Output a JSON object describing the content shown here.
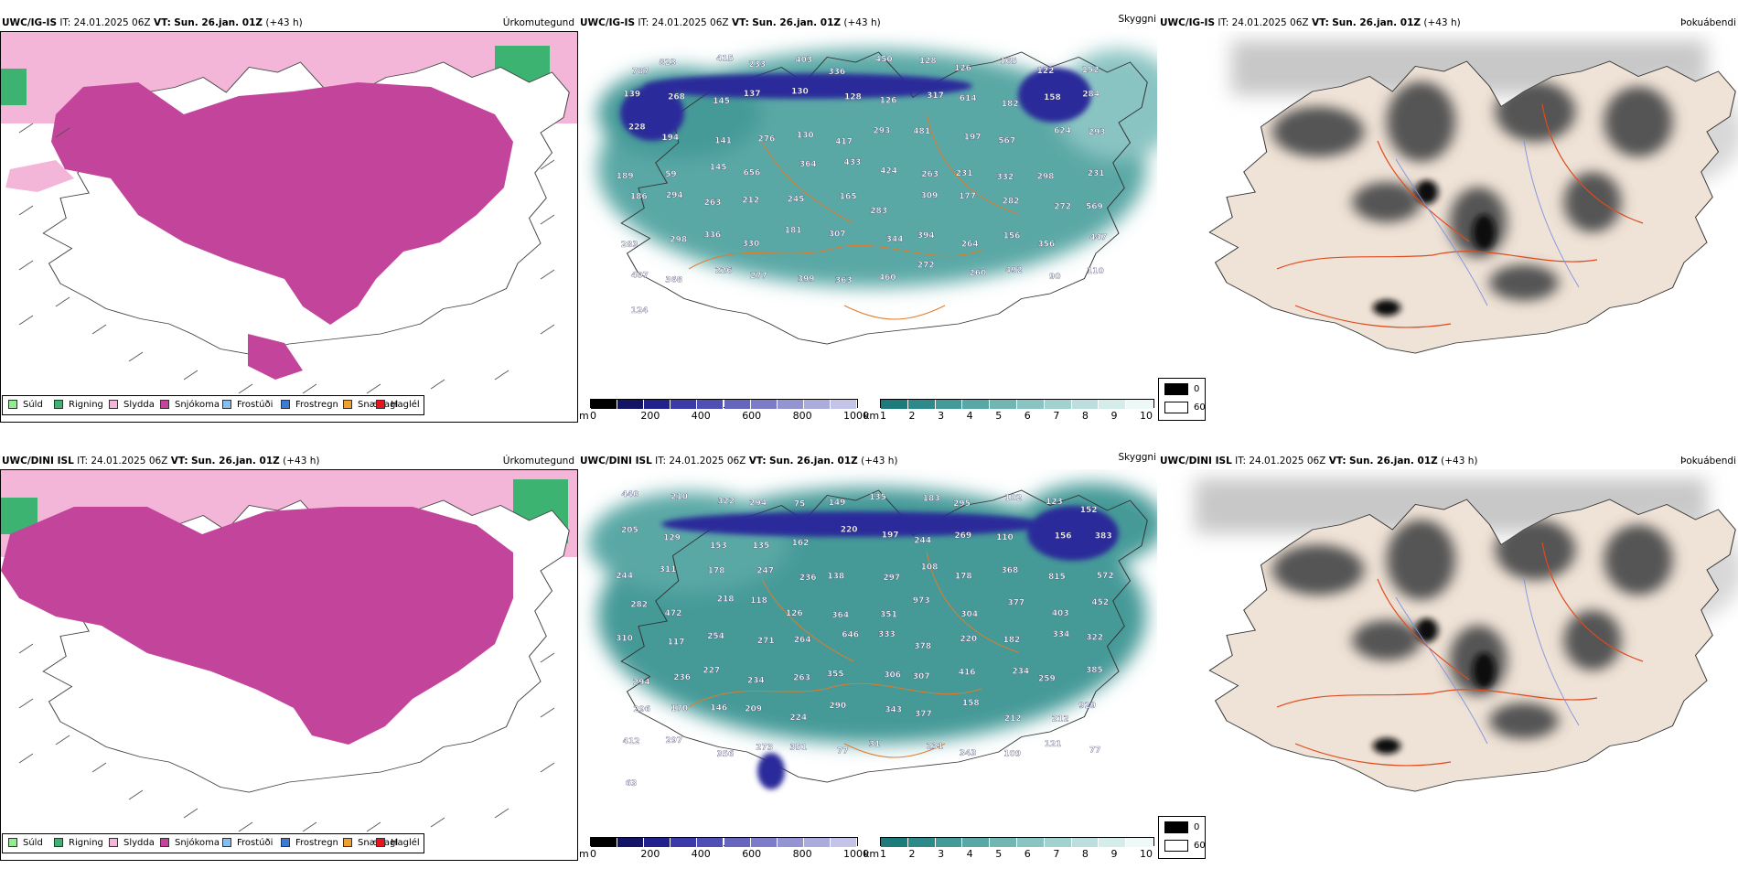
{
  "rows": [
    {
      "title_model": "UWC/IG-IS",
      "title_it": "IT: 24.01.2025 06Z",
      "title_vt_label": "VT:",
      "title_vt_value": "Sun. 26.jan. 01Z",
      "title_lead": "(+43 h)"
    },
    {
      "title_model": "UWC/DINI ISL",
      "title_it": "IT: 24.01.2025 06Z",
      "title_vt_label": "VT:",
      "title_vt_value": "Sun. 26.jan. 01Z",
      "title_lead": "(+43 h)"
    }
  ],
  "variables": {
    "precip_type": "Úrkomutegund",
    "visibility": "Skyggni",
    "fog": "Þokuábendi"
  },
  "precip_legend": [
    {
      "label": "Súld",
      "color": "#90ee90"
    },
    {
      "label": "Rigning",
      "color": "#3cb371"
    },
    {
      "label": "Slydda",
      "color": "#f4b6d8"
    },
    {
      "label": "Snjókoma",
      "color": "#c2449b"
    },
    {
      "label": "Frostúði",
      "color": "#87bdf0"
    },
    {
      "label": "Frostregn",
      "color": "#3a7bd5"
    },
    {
      "label": "Snæhagl",
      "color": "#f0a02c"
    },
    {
      "label": "Haglél",
      "color": "#e8141e"
    }
  ],
  "cloud_base_bar": {
    "unit": "m",
    "ticks": [
      "0",
      "200",
      "400",
      "600",
      "800",
      "1000"
    ],
    "colors": [
      "#000000",
      "#141466",
      "#22228c",
      "#3a3aa8",
      "#5050b4",
      "#6666be",
      "#7c7cc8",
      "#9494d2",
      "#acacdc",
      "#c4c4e8"
    ]
  },
  "visibility_bar": {
    "unit": "km",
    "ticks": [
      "1",
      "2",
      "3",
      "4",
      "5",
      "6",
      "7",
      "8",
      "9",
      "10"
    ],
    "colors": [
      "#1e7b7b",
      "#2e8a8a",
      "#449a98",
      "#5aa8a6",
      "#72b6b4",
      "#8ac4c2",
      "#a2d2d0",
      "#bcdfde",
      "#d4ecea",
      "#eef8f7"
    ]
  },
  "fog_legend": [
    {
      "label": "0",
      "color": "#000000"
    },
    {
      "label": "60",
      "color": "#ffffff"
    }
  ],
  "cloud_labels": [
    [
      "787",
      "823",
      "415",
      "233",
      "403",
      "336",
      "450",
      "128",
      "126",
      "165",
      "122",
      "152",
      "139",
      "268",
      "145",
      "137",
      "130",
      "128",
      "126",
      "317",
      "614",
      "182",
      "158",
      "284",
      "228",
      "194",
      "141",
      "276",
      "130",
      "417",
      "293",
      "481",
      "197",
      "567",
      "624",
      "293",
      "189",
      "59",
      "145",
      "656",
      "364",
      "433",
      "424",
      "263",
      "231",
      "332",
      "298",
      "231",
      "186",
      "294",
      "263",
      "212",
      "245",
      "165",
      "283",
      "309",
      "177",
      "282",
      "272",
      "569",
      "283",
      "298",
      "336",
      "330",
      "181",
      "307",
      "344",
      "394",
      "264",
      "156",
      "356",
      "447",
      "407",
      "368",
      "226",
      "277",
      "399",
      "363",
      "460",
      "272",
      "260",
      "492",
      "90",
      "110",
      "124"
    ],
    [
      "440",
      "210",
      "322",
      "294",
      "75",
      "149",
      "135",
      "183",
      "295",
      "102",
      "123",
      "152",
      "205",
      "129",
      "153",
      "135",
      "162",
      "220",
      "197",
      "244",
      "269",
      "110",
      "156",
      "383",
      "244",
      "311",
      "178",
      "247",
      "236",
      "138",
      "297",
      "108",
      "178",
      "368",
      "815",
      "572",
      "282",
      "472",
      "218",
      "118",
      "126",
      "364",
      "351",
      "973",
      "304",
      "377",
      "403",
      "452",
      "310",
      "117",
      "254",
      "271",
      "264",
      "646",
      "333",
      "378",
      "220",
      "182",
      "334",
      "322",
      "294",
      "236",
      "227",
      "234",
      "263",
      "355",
      "306",
      "307",
      "416",
      "234",
      "259",
      "385",
      "296",
      "170",
      "146",
      "209",
      "224",
      "290",
      "343",
      "377",
      "158",
      "212",
      "212",
      "929",
      "412",
      "297",
      "356",
      "273",
      "351",
      "77",
      "31",
      "231",
      "343",
      "109",
      "121",
      "77",
      "63"
    ]
  ]
}
